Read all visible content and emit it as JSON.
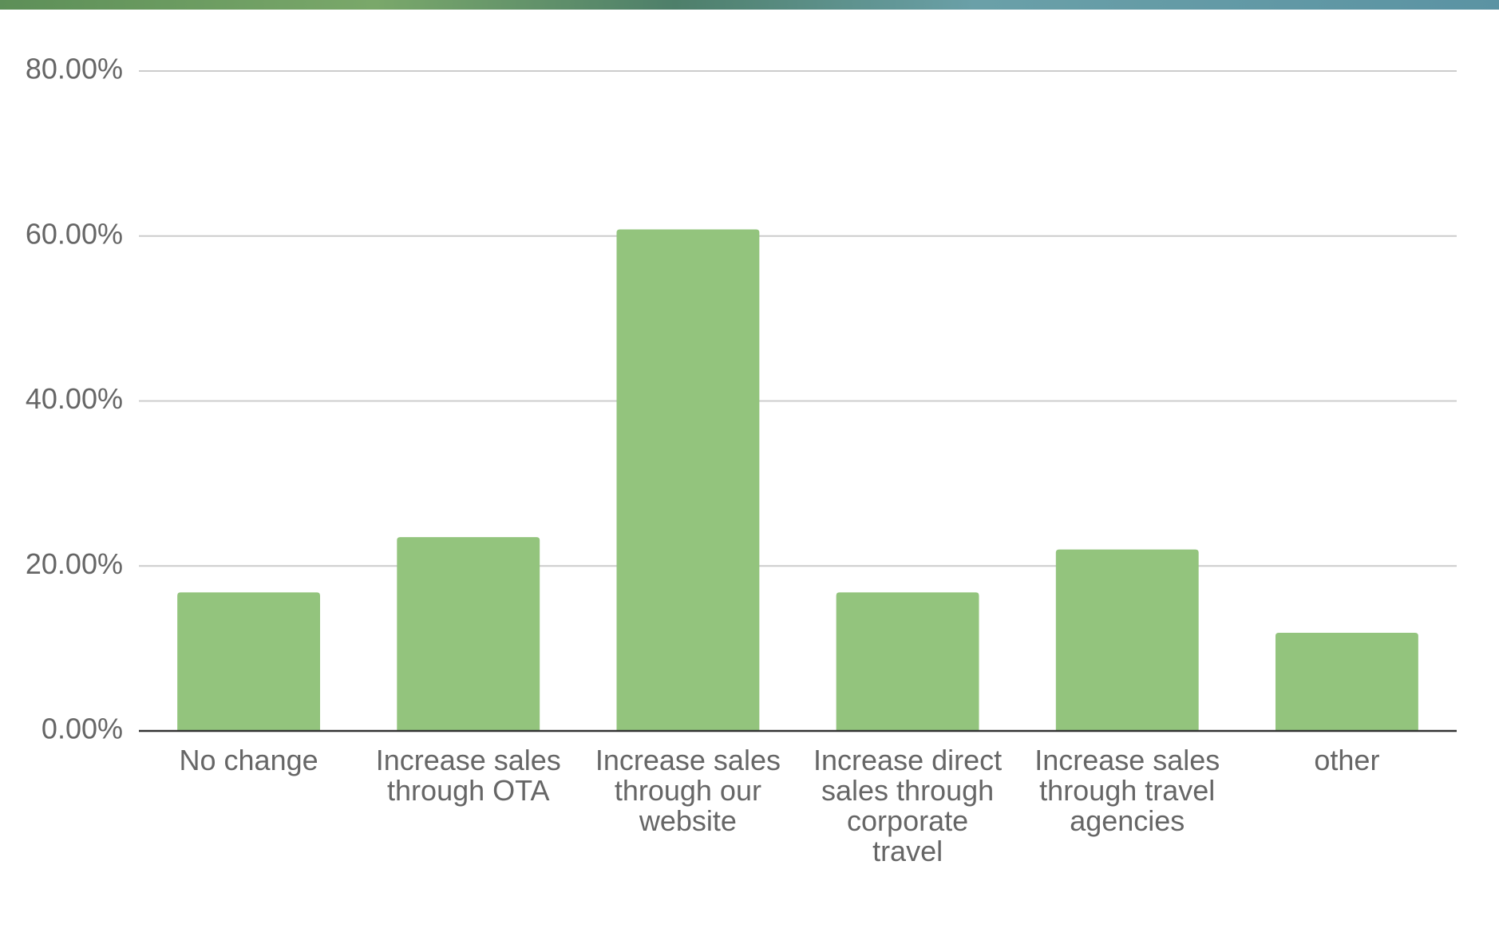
{
  "chart_data": {
    "type": "bar",
    "categories": [
      "No change",
      "Increase sales through OTA",
      "Increase sales through our website",
      "Increase direct sales through corporate travel",
      "Increase sales through travel agencies",
      "other"
    ],
    "values": [
      16.8,
      23.5,
      60.8,
      16.8,
      22.0,
      11.9
    ],
    "color": "#93c47d",
    "ylim": [
      0,
      80
    ],
    "yticks": [
      {
        "value": 0,
        "label": "0.00%"
      },
      {
        "value": 20,
        "label": "20.00%"
      },
      {
        "value": 40,
        "label": "40.00%"
      },
      {
        "value": 60,
        "label": "60.00%"
      },
      {
        "value": 80,
        "label": "80.00%"
      }
    ],
    "grid": true
  }
}
